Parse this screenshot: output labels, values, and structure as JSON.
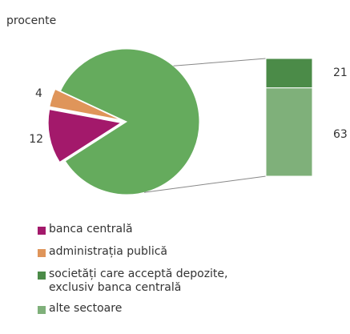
{
  "chart_data": {
    "type": "pie",
    "subtitle": "procente",
    "pie": {
      "categories": [
        "banca centrală",
        "administrația publică"
      ],
      "values": [
        12,
        4
      ],
      "colors": [
        "#a3196b",
        "#df955a"
      ],
      "rest_color": "#65ab5d"
    },
    "bar": {
      "categories": [
        "societăți care acceptă depozite, exclusiv banca centrală",
        "alte sectoare"
      ],
      "values": [
        21,
        63
      ],
      "colors": [
        "#4b8b48",
        "#7fb07a"
      ]
    }
  }
}
